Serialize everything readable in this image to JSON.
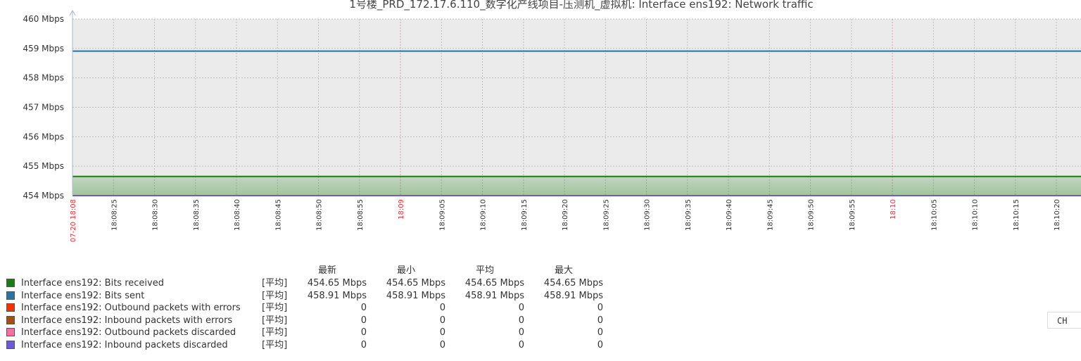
{
  "chart_data": {
    "type": "area",
    "title": "1号楼_PRD_172.17.6.110_数字化产线项目-压测机_虚拟机: Interface ens192: Network traffic",
    "ylim": [
      454,
      460
    ],
    "y_ticks": [
      "460 Mbps",
      "459 Mbps",
      "458 Mbps",
      "457 Mbps",
      "456 Mbps",
      "455 Mbps",
      "454 Mbps"
    ],
    "x_range": [
      "18:08:20",
      "18:10:23"
    ],
    "x_ticks": [
      {
        "label": "07-20 18:08",
        "t": 0,
        "highlight": true
      },
      {
        "label": "18:08:25",
        "t": 5
      },
      {
        "label": "18:08:30",
        "t": 10
      },
      {
        "label": "18:08:35",
        "t": 15
      },
      {
        "label": "18:08:40",
        "t": 20
      },
      {
        "label": "18:08:45",
        "t": 25
      },
      {
        "label": "18:08:50",
        "t": 30
      },
      {
        "label": "18:08:55",
        "t": 35
      },
      {
        "label": "18:09",
        "t": 40,
        "highlight": true
      },
      {
        "label": "18:09:05",
        "t": 45
      },
      {
        "label": "18:09:10",
        "t": 50
      },
      {
        "label": "18:09:15",
        "t": 55
      },
      {
        "label": "18:09:20",
        "t": 60
      },
      {
        "label": "18:09:25",
        "t": 65
      },
      {
        "label": "18:09:30",
        "t": 70
      },
      {
        "label": "18:09:35",
        "t": 75
      },
      {
        "label": "18:09:40",
        "t": 80
      },
      {
        "label": "18:09:45",
        "t": 85
      },
      {
        "label": "18:09:50",
        "t": 90
      },
      {
        "label": "18:09:55",
        "t": 95
      },
      {
        "label": "18:10",
        "t": 100,
        "highlight": true
      },
      {
        "label": "18:10:05",
        "t": 105
      },
      {
        "label": "18:10:10",
        "t": 110
      },
      {
        "label": "18:10:15",
        "t": 115
      },
      {
        "label": "18:10:20",
        "t": 120
      }
    ],
    "series": [
      {
        "name": "Interface ens192: Bits received",
        "color": "#1A7C11",
        "value": 454.65,
        "style": "filled"
      },
      {
        "name": "Interface ens192: Bits sent",
        "color": "#2774A4",
        "value": 458.91,
        "style": "line"
      },
      {
        "name": "Interface ens192: Outbound packets with errors",
        "color": "#F63100",
        "value": 0,
        "style": "line"
      },
      {
        "name": "Interface ens192: Inbound packets with errors",
        "color": "#A54F10",
        "value": 0,
        "style": "line"
      },
      {
        "name": "Interface ens192: Outbound packets discarded",
        "color": "#FC6EA3",
        "value": 0,
        "style": "line"
      },
      {
        "name": "Interface ens192: Inbound packets discarded",
        "color": "#6C59DC",
        "value": 0,
        "style": "line"
      }
    ]
  },
  "legend": {
    "headers": [
      "最新",
      "最小",
      "平均",
      "最大"
    ],
    "rows": [
      {
        "name": "Interface ens192: Bits received",
        "fn": "[平均]",
        "last": "454.65 Mbps",
        "min": "454.65 Mbps",
        "avg": "454.65 Mbps",
        "max": "454.65 Mbps"
      },
      {
        "name": "Interface ens192: Bits sent",
        "fn": "[平均]",
        "last": "458.91 Mbps",
        "min": "458.91 Mbps",
        "avg": "458.91 Mbps",
        "max": "458.91 Mbps"
      },
      {
        "name": "Interface ens192: Outbound packets with errors",
        "fn": "[平均]",
        "last": "0",
        "min": "0",
        "avg": "0",
        "max": "0"
      },
      {
        "name": "Interface ens192: Inbound packets with errors",
        "fn": "[平均]",
        "last": "0",
        "min": "0",
        "avg": "0",
        "max": "0"
      },
      {
        "name": "Interface ens192: Outbound packets discarded",
        "fn": "[平均]",
        "last": "0",
        "min": "0",
        "avg": "0",
        "max": "0"
      },
      {
        "name": "Interface ens192: Inbound packets discarded",
        "fn": "[平均]",
        "last": "0",
        "min": "0",
        "avg": "0",
        "max": "0"
      }
    ]
  },
  "lang_button": "CH"
}
